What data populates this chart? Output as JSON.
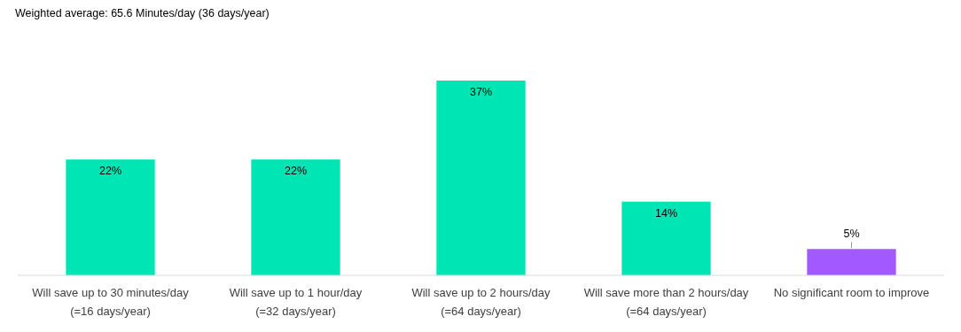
{
  "chart_data": {
    "type": "bar",
    "title": "Weighted average: 65.6 Minutes/day (36 days/year)",
    "categories": [
      "Will save up to 30 minutes/day\n(=16 days/year)",
      "Will save up to 1 hour/day\n(=32 days/year)",
      "Will save up to 2 hours/day\n(=64 days/year)",
      "Will save more than 2 hours/day\n(=64 days/year)",
      "No significant room to improve"
    ],
    "values": [
      22,
      22,
      37,
      14,
      5
    ],
    "colors": [
      "#00e5b4",
      "#00e5b4",
      "#00e5b4",
      "#00e5b4",
      "#a259ff"
    ],
    "value_labels": [
      "22%",
      "22%",
      "37%",
      "14%",
      "5%"
    ]
  }
}
